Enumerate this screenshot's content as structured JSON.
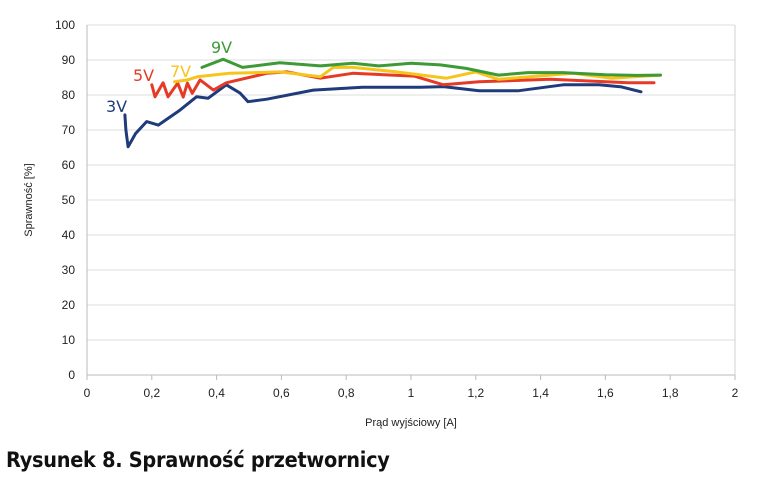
{
  "caption": "Rysunek 8. Sprawność przetwornicy",
  "chart_data": {
    "type": "line",
    "title": "",
    "xlabel": "Prąd wyjściowy [A]",
    "ylabel": "Sprawność [%]",
    "xlim": [
      0,
      2
    ],
    "ylim": [
      0,
      100
    ],
    "x_ticks": [
      "0",
      "0,2",
      "0,4",
      "0,6",
      "0,8",
      "1",
      "1,2",
      "1,4",
      "1,6",
      "1,8",
      "2"
    ],
    "y_ticks": [
      "0",
      "10",
      "20",
      "30",
      "40",
      "50",
      "60",
      "70",
      "80",
      "90",
      "100"
    ],
    "grid": "horizontal",
    "legend": "inline labels",
    "series": [
      {
        "name": "3V",
        "color": "#1f3b7c",
        "x": [
          0.117,
          0.12,
          0.127,
          0.15,
          0.184,
          0.22,
          0.287,
          0.338,
          0.374,
          0.43,
          0.472,
          0.497,
          0.555,
          0.698,
          0.85,
          1.03,
          1.1,
          1.21,
          1.33,
          1.47,
          1.58,
          1.65,
          1.71
        ],
        "y": [
          74.3,
          70,
          65.2,
          69,
          72.4,
          71.4,
          75.7,
          79.5,
          79.1,
          82.9,
          80.6,
          78.1,
          78.8,
          81.4,
          82.2,
          82.2,
          82.4,
          81.2,
          81.2,
          82.9,
          82.9,
          82.3,
          80.9
        ]
      },
      {
        "name": "5V",
        "color": "#e63a26",
        "x": [
          0.2,
          0.21,
          0.235,
          0.25,
          0.28,
          0.297,
          0.31,
          0.325,
          0.349,
          0.39,
          0.43,
          0.555,
          0.617,
          0.72,
          0.82,
          1.01,
          1.1,
          1.21,
          1.43,
          1.67,
          1.75
        ],
        "y": [
          82.9,
          79.5,
          83.5,
          79.5,
          83.4,
          79.4,
          83.4,
          80.5,
          84.3,
          81.4,
          83.5,
          86.2,
          86.6,
          84.8,
          86.2,
          85.4,
          82.9,
          83.8,
          84.5,
          83.5,
          83.5
        ]
      },
      {
        "name": "7V",
        "color": "#f6c51c",
        "x": [
          0.27,
          0.31,
          0.34,
          0.44,
          0.595,
          0.72,
          0.76,
          0.82,
          0.955,
          1.11,
          1.2,
          1.27,
          1.5,
          1.62,
          1.77
        ],
        "y": [
          83.8,
          84.3,
          85.2,
          86.2,
          86.6,
          85.2,
          87.9,
          87.9,
          86.6,
          84.8,
          86.6,
          84.5,
          86.2,
          84.8,
          85.7
        ]
      },
      {
        "name": "9V",
        "color": "#3e9a36",
        "x": [
          0.355,
          0.42,
          0.48,
          0.595,
          0.72,
          0.82,
          0.9,
          1.0,
          1.09,
          1.17,
          1.27,
          1.36,
          1.47,
          1.6,
          1.7,
          1.77
        ],
        "y": [
          87.9,
          90.2,
          87.9,
          89.2,
          88.3,
          89.1,
          88.3,
          89.1,
          88.6,
          87.6,
          85.7,
          86.4,
          86.4,
          85.8,
          85.6,
          85.7
        ]
      }
    ]
  }
}
